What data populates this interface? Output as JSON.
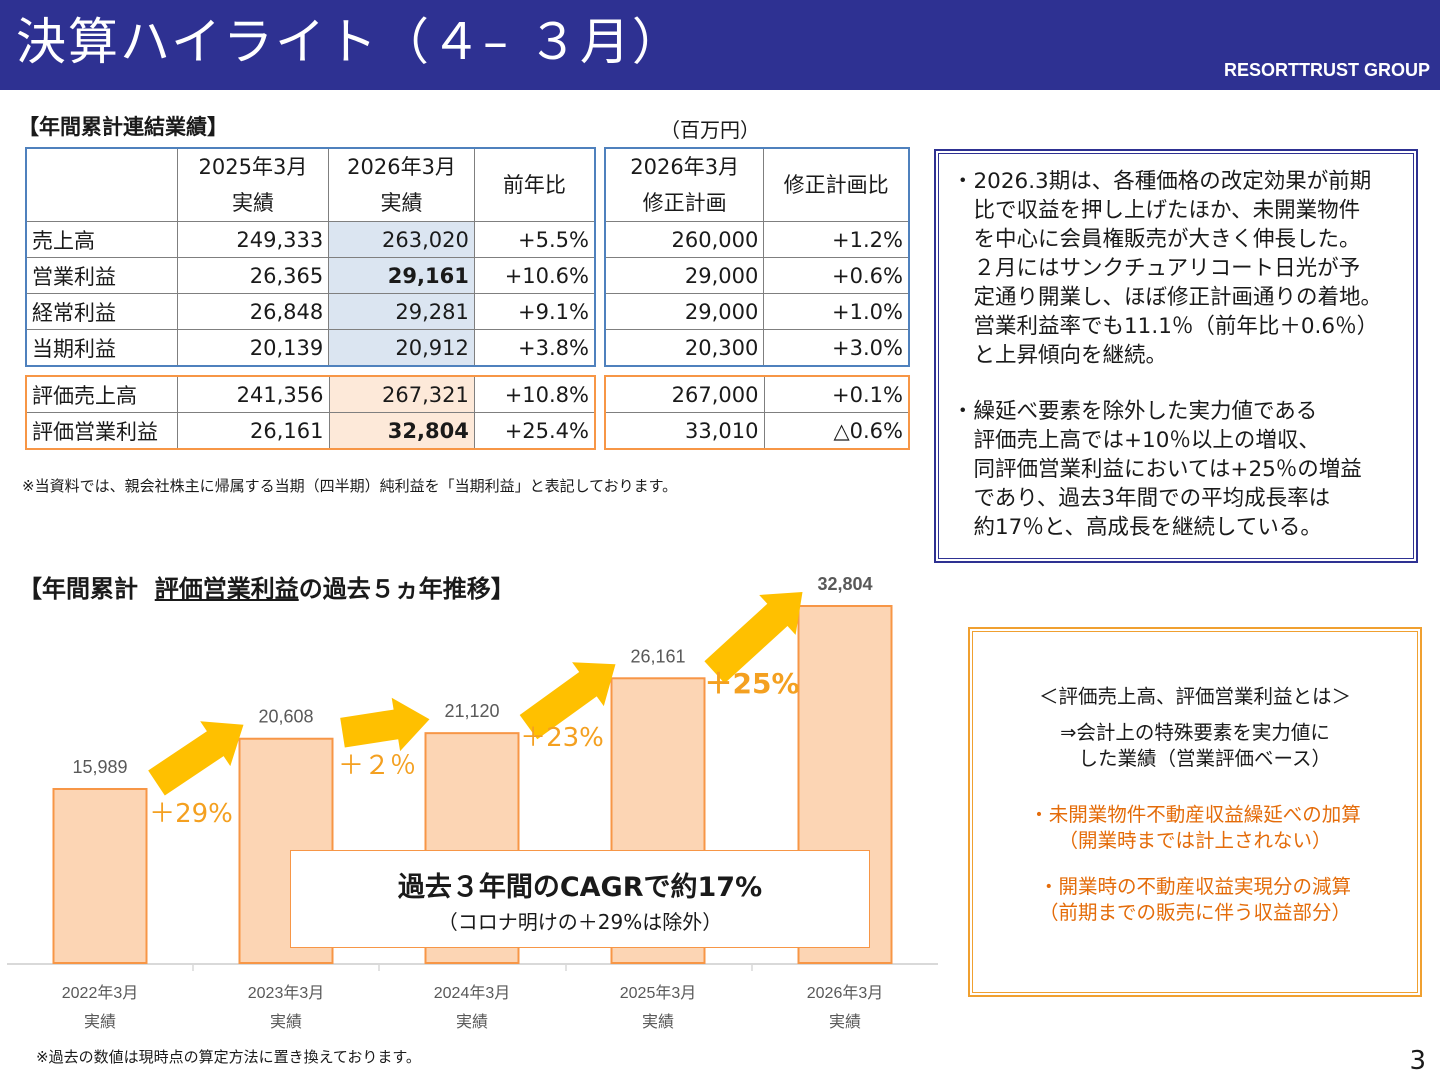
{
  "header": {
    "title": "決算ハイライト（４– ３月）",
    "brand": "RESORTTRUST GROUP"
  },
  "table_section": {
    "title": "【年間累計連結業績】",
    "unit": "（百万円）",
    "headers": {
      "fy2025_line1": "2025年3月",
      "fy2025_line2": "実績",
      "fy2026_line1": "2026年3月",
      "fy2026_line2": "実績",
      "yoy": "前年比",
      "plan_line1": "2026年3月",
      "plan_line2": "修正計画",
      "vs_plan": "修正計画比"
    },
    "rows": [
      {
        "label": "売上高",
        "fy2025": "249,333",
        "fy2026": "263,020",
        "yoy": "+5.5%",
        "plan": "260,000",
        "vs_plan": "+1.2%"
      },
      {
        "label": "営業利益",
        "fy2025": "26,365",
        "fy2026": "29,161",
        "yoy": "+10.6%",
        "plan": "29,000",
        "vs_plan": "+0.6%"
      },
      {
        "label": "経常利益",
        "fy2025": "26,848",
        "fy2026": "29,281",
        "yoy": "+9.1%",
        "plan": "29,000",
        "vs_plan": "+1.0%"
      },
      {
        "label": "当期利益",
        "fy2025": "20,139",
        "fy2026": "20,912",
        "yoy": "+3.8%",
        "plan": "20,300",
        "vs_plan": "+3.0%"
      }
    ],
    "eval_rows": [
      {
        "label": "評価売上高",
        "fy2025": "241,356",
        "fy2026": "267,321",
        "yoy": "+10.8%",
        "plan": "267,000",
        "vs_plan": "+0.1%"
      },
      {
        "label": "評価営業利益",
        "fy2025": "26,161",
        "fy2026": "32,804",
        "yoy": "+25.4%",
        "plan": "33,010",
        "vs_plan": "△0.6%"
      }
    ],
    "note": "※当資料では、親会社株主に帰属する当期（四半期）純利益を「当期利益」と表記しております。"
  },
  "commentary": {
    "bullet1": [
      "・2026.3期は、各種価格の改定効果が前期",
      "　比で収益を押し上げたほか、未開業物件",
      "　を中心に会員権販売が大きく伸長した。",
      "　２月にはサンクチュアリコート日光が予",
      "　定通り開業し、ほぼ修正計画通りの着地。",
      "　営業利益率でも11.1％（前年比＋0.6％）",
      "　と上昇傾向を継続。"
    ],
    "bullet2": [
      "・繰延べ要素を除外した実力値である",
      "　評価売上高では+10％以上の増収、",
      "　同評価営業利益においては+25％の増益",
      "　であり、過去3年間での平均成長率は",
      "　約17％と、高成長を継続している。"
    ]
  },
  "chart_section": {
    "title_prefix": "【年間累計",
    "title_underlined": "評価営業利益",
    "title_suffix": "の過去５ヵ年推移】",
    "footnote": "※過去の数値は現時点の算定方法に置き換えております。"
  },
  "chart_data": {
    "type": "bar",
    "categories": [
      "2022年3月\n実績",
      "2023年3月\n実績",
      "2024年3月\n実績",
      "2025年3月\n実績",
      "2026年3月\n実績"
    ],
    "values": [
      15989,
      20608,
      21120,
      26161,
      32804
    ],
    "value_labels": [
      "15,989",
      "20,608",
      "21,120",
      "26,161",
      "32,804"
    ],
    "growth_labels": [
      "＋29%",
      "＋２％",
      "＋23%",
      "＋25%"
    ],
    "title": "",
    "bar_color": "#fcd5b4",
    "bar_border_color": "#f79646",
    "arrow_color": "#ffc000",
    "growth_color": "#f4a020",
    "grid": false
  },
  "cagr": {
    "main": "過去３年間のCAGRで約17%",
    "sub": "（コロナ明けの＋29%は除外）"
  },
  "definition_box": {
    "lines": [
      "＜評価売上高、評価営業利益とは＞",
      "⇒会計上の特殊要素を実力値に",
      "　した業績（営業評価ベース）"
    ],
    "orange_lines": [
      "・未開業物件不動産収益繰延べの加算",
      "（開業時までは計上されない）",
      "・開業時の不動産収益実現分の減算",
      "（前期までの販売に伴う収益部分）"
    ]
  },
  "page_number": "3"
}
